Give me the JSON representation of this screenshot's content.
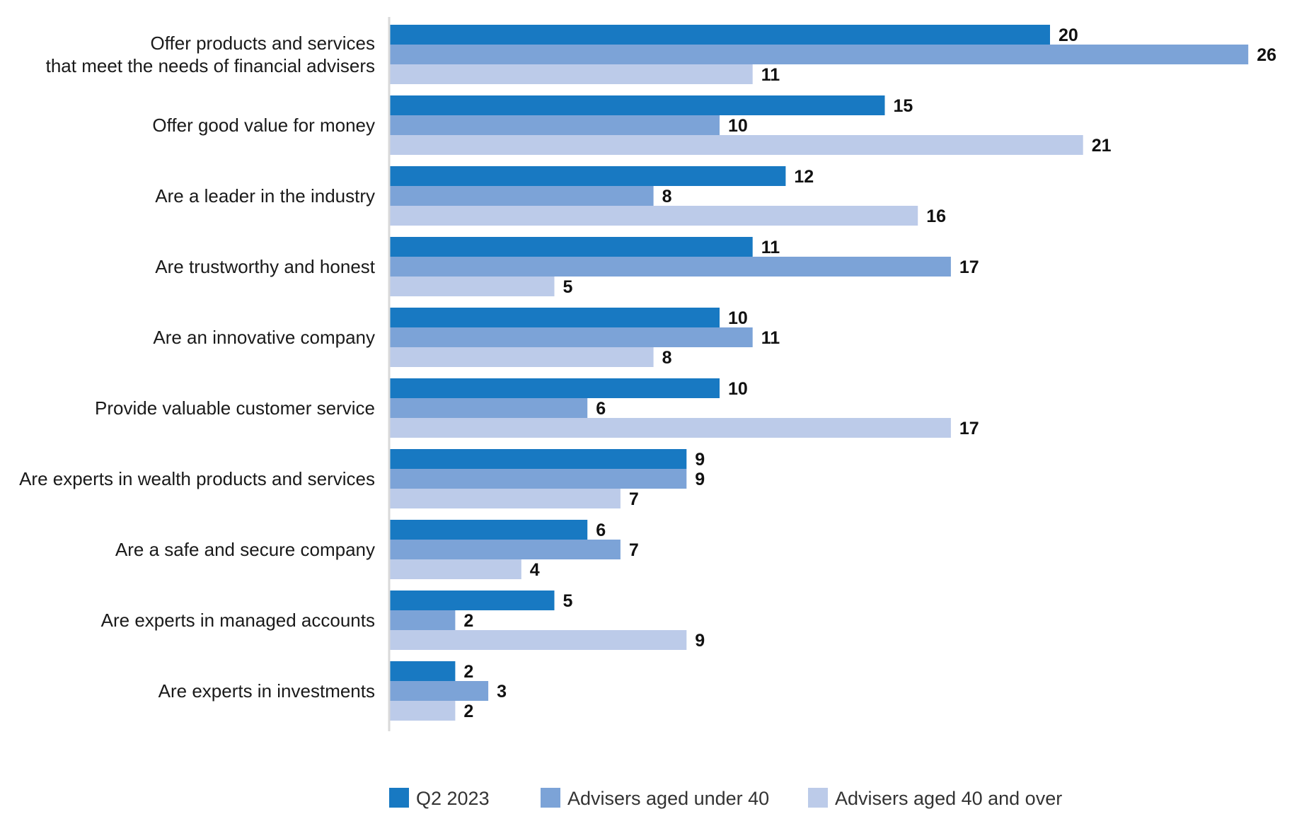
{
  "chart_data": {
    "type": "bar",
    "orientation": "horizontal",
    "categories": [
      [
        "Offer products and services",
        "that meet the needs of financial advisers"
      ],
      [
        "Offer good value for money"
      ],
      [
        "Are a leader in the industry"
      ],
      [
        "Are trustworthy and honest"
      ],
      [
        "Are an innovative company"
      ],
      [
        "Provide valuable customer service"
      ],
      [
        "Are experts in wealth products and services"
      ],
      [
        "Are a safe and secure company"
      ],
      [
        "Are experts in managed accounts"
      ],
      [
        "Are experts in investments"
      ]
    ],
    "series": [
      {
        "name": "Q2 2023",
        "color": "#1879c2",
        "values": [
          20,
          15,
          12,
          11,
          10,
          10,
          9,
          6,
          5,
          2
        ]
      },
      {
        "name": "Advisers aged under 40",
        "color": "#7ca3d7",
        "values": [
          26,
          10,
          8,
          17,
          11,
          6,
          9,
          7,
          2,
          3
        ]
      },
      {
        "name": "Advisers aged 40 and over",
        "color": "#bccbe9",
        "values": [
          11,
          21,
          16,
          5,
          8,
          17,
          7,
          4,
          9,
          2
        ]
      }
    ],
    "xlim": [
      0,
      26
    ],
    "title": "",
    "xlabel": "",
    "ylabel": "",
    "grid": false,
    "legend_position": "bottom"
  }
}
